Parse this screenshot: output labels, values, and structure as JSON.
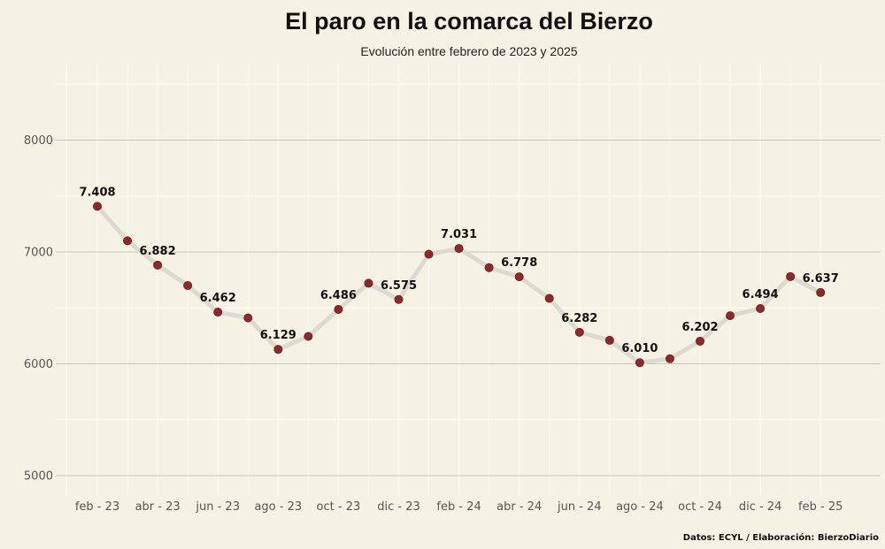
{
  "chart_data": {
    "type": "line",
    "title": "El paro en la comarca del Bierzo",
    "subtitle": "Evolución entre febrero de 2023 y 2025",
    "caption": "Datos: ECYL / Elaboración: BierzoDiario",
    "xlabel": "",
    "ylabel": "",
    "ylim": [
      4900,
      8600
    ],
    "y_ticks": [
      5000,
      6000,
      7000,
      8000
    ],
    "y_tick_labels": [
      "5000",
      "6000",
      "7000",
      "8000"
    ],
    "x_tick_labels": [
      "feb - 23",
      "abr - 23",
      "jun - 23",
      "ago - 23",
      "oct - 23",
      "dic - 23",
      "feb - 24",
      "abr - 24",
      "jun - 24",
      "ago - 24",
      "oct - 24",
      "dic - 24",
      "feb - 25"
    ],
    "x_tick_indices": [
      0,
      2,
      4,
      6,
      8,
      10,
      12,
      14,
      16,
      18,
      20,
      22,
      24
    ],
    "values": [
      7408,
      7100,
      6882,
      6700,
      6462,
      6410,
      6129,
      6245,
      6486,
      6720,
      6575,
      6980,
      7031,
      6860,
      6778,
      6585,
      6282,
      6210,
      6010,
      6045,
      6202,
      6430,
      6494,
      6780,
      6637
    ],
    "data_labels": [
      {
        "index": 0,
        "text": "7.408"
      },
      {
        "index": 2,
        "text": "6.882"
      },
      {
        "index": 4,
        "text": "6.462"
      },
      {
        "index": 6,
        "text": "6.129"
      },
      {
        "index": 8,
        "text": "6.486"
      },
      {
        "index": 10,
        "text": "6.575"
      },
      {
        "index": 12,
        "text": "7.031"
      },
      {
        "index": 14,
        "text": "6.778"
      },
      {
        "index": 16,
        "text": "6.282"
      },
      {
        "index": 18,
        "text": "6.010"
      },
      {
        "index": 20,
        "text": "6.202"
      },
      {
        "index": 22,
        "text": "6.494"
      },
      {
        "index": 24,
        "text": "6.637"
      }
    ],
    "grid": true,
    "colors": {
      "background": "#f5f2e3",
      "line": "#dcdad0",
      "point": "#8b2a2a",
      "major_grid": "#c8c5b6",
      "minor_grid": "#fbf9f0"
    }
  }
}
